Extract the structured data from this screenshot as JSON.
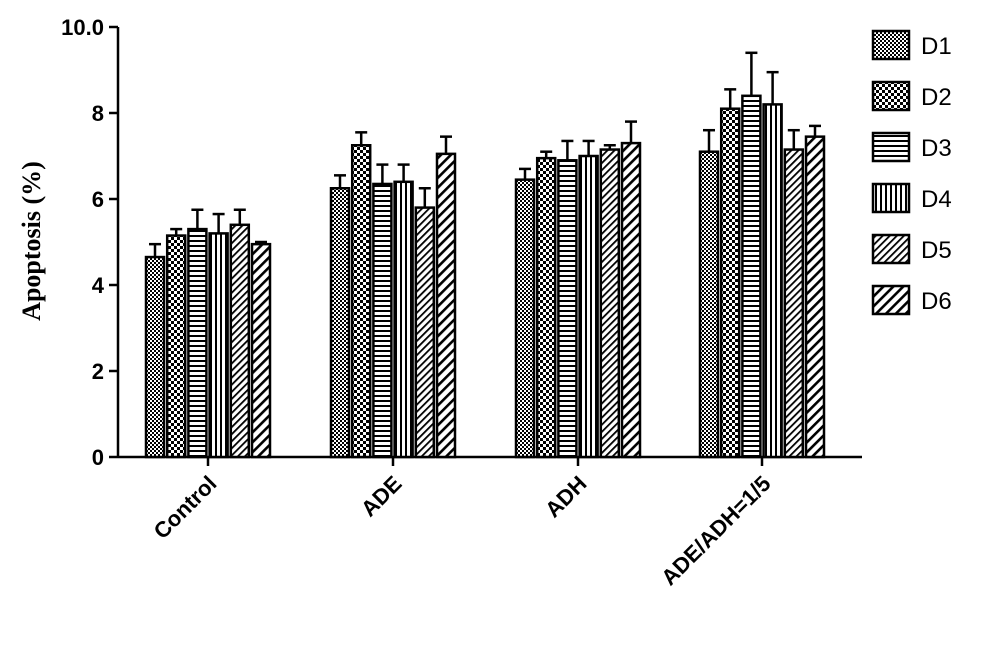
{
  "chart_data": {
    "type": "bar",
    "title": "",
    "xlabel": "",
    "ylabel": "Apoptosis (%)",
    "ylim": [
      0,
      10
    ],
    "yticks": [
      "0",
      "2",
      "4",
      "6",
      "8",
      "10.0"
    ],
    "categories": [
      "Control",
      "ADE",
      "ADH",
      "ADE/ADH=1/5"
    ],
    "legend_position": "right",
    "grid": false,
    "series": [
      {
        "name": "D1",
        "pattern": "checker-fine",
        "values": [
          4.65,
          6.25,
          6.45,
          7.1
        ],
        "errors": [
          0.3,
          0.3,
          0.25,
          0.5
        ]
      },
      {
        "name": "D2",
        "pattern": "checker-coarse",
        "values": [
          5.15,
          7.25,
          6.95,
          8.1
        ],
        "errors": [
          0.15,
          0.3,
          0.15,
          0.45
        ]
      },
      {
        "name": "D3",
        "pattern": "horizontal",
        "values": [
          5.3,
          6.35,
          6.9,
          8.4
        ],
        "errors": [
          0.45,
          0.45,
          0.45,
          1.0
        ]
      },
      {
        "name": "D4",
        "pattern": "vertical",
        "values": [
          5.2,
          6.4,
          7.0,
          8.2
        ],
        "errors": [
          0.45,
          0.4,
          0.35,
          0.75
        ]
      },
      {
        "name": "D5",
        "pattern": "diagonal-fine",
        "values": [
          5.4,
          5.8,
          7.15,
          7.15
        ],
        "errors": [
          0.35,
          0.45,
          0.1,
          0.45
        ]
      },
      {
        "name": "D6",
        "pattern": "diagonal-coarse",
        "values": [
          4.95,
          7.05,
          7.3,
          7.45
        ],
        "errors": [
          0.05,
          0.4,
          0.5,
          0.25
        ]
      }
    ]
  }
}
